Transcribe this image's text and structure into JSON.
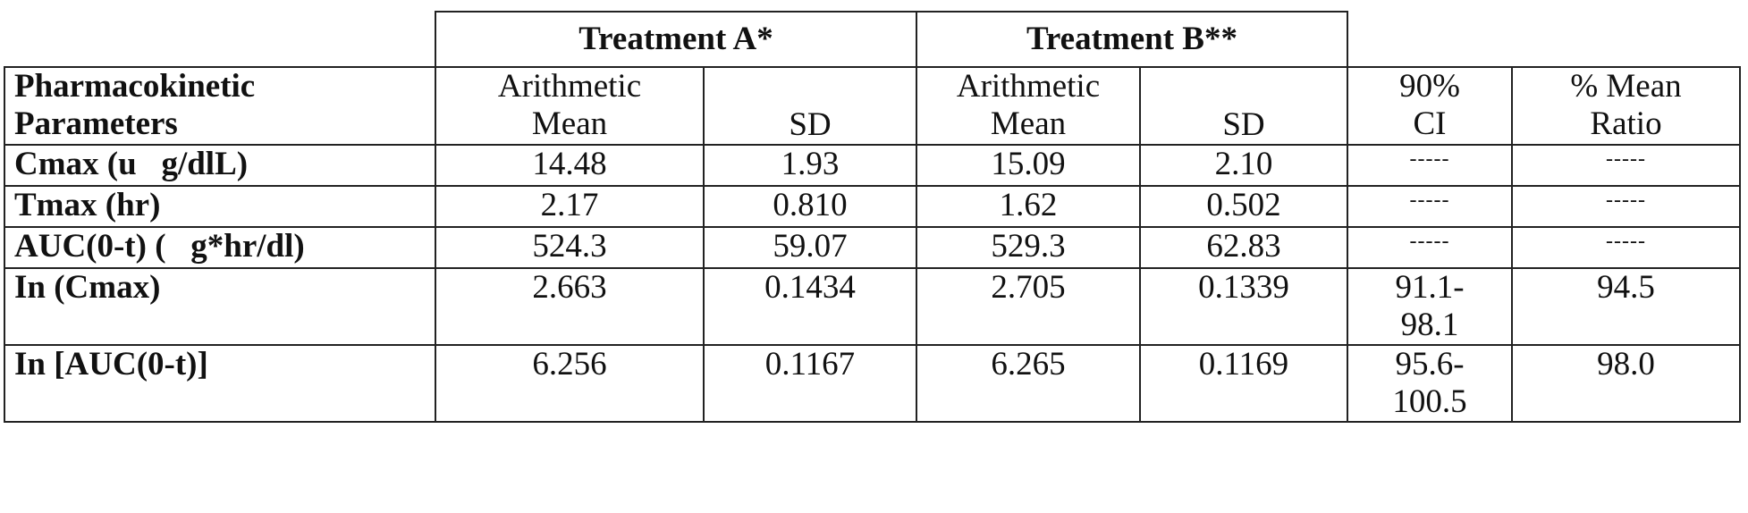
{
  "table": {
    "group_headers": {
      "treatment_a": "Treatment A*",
      "treatment_b": "Treatment B**"
    },
    "column_headers": {
      "param": [
        "Pharmacokinetic",
        "Parameters"
      ],
      "a_mean": [
        "Arithmetic",
        "Mean"
      ],
      "a_sd": "SD",
      "b_mean": [
        "Arithmetic",
        "Mean"
      ],
      "b_sd": "SD",
      "ci": [
        "90%",
        "CI"
      ],
      "ratio": [
        "% Mean",
        "Ratio"
      ]
    },
    "rows": [
      {
        "param": "Cmax (u   g/dlL)",
        "a_mean": "14.48",
        "a_sd": "1.93",
        "b_mean": "15.09",
        "b_sd": "2.10",
        "ci": [
          "-----"
        ],
        "ratio": "-----"
      },
      {
        "param": "Tmax (hr)",
        "a_mean": "2.17",
        "a_sd": "0.810",
        "b_mean": "1.62",
        "b_sd": "0.502",
        "ci": [
          "-----"
        ],
        "ratio": "-----"
      },
      {
        "param": "AUC(0-t) (   g*hr/dl)",
        "a_mean": "524.3",
        "a_sd": "59.07",
        "b_mean": "529.3",
        "b_sd": "62.83",
        "ci": [
          "-----"
        ],
        "ratio": "-----"
      },
      {
        "param": "In (Cmax)",
        "a_mean": "2.663",
        "a_sd": "0.1434",
        "b_mean": "2.705",
        "b_sd": "0.1339",
        "ci": [
          "91.1-",
          "98.1"
        ],
        "ratio": "94.5"
      },
      {
        "param": "In [AUC(0-t)]",
        "a_mean": "6.256",
        "a_sd": "0.1167",
        "b_mean": "6.265",
        "b_sd": "0.1169",
        "ci": [
          "95.6-",
          "100.5"
        ],
        "ratio": "98.0"
      }
    ]
  }
}
